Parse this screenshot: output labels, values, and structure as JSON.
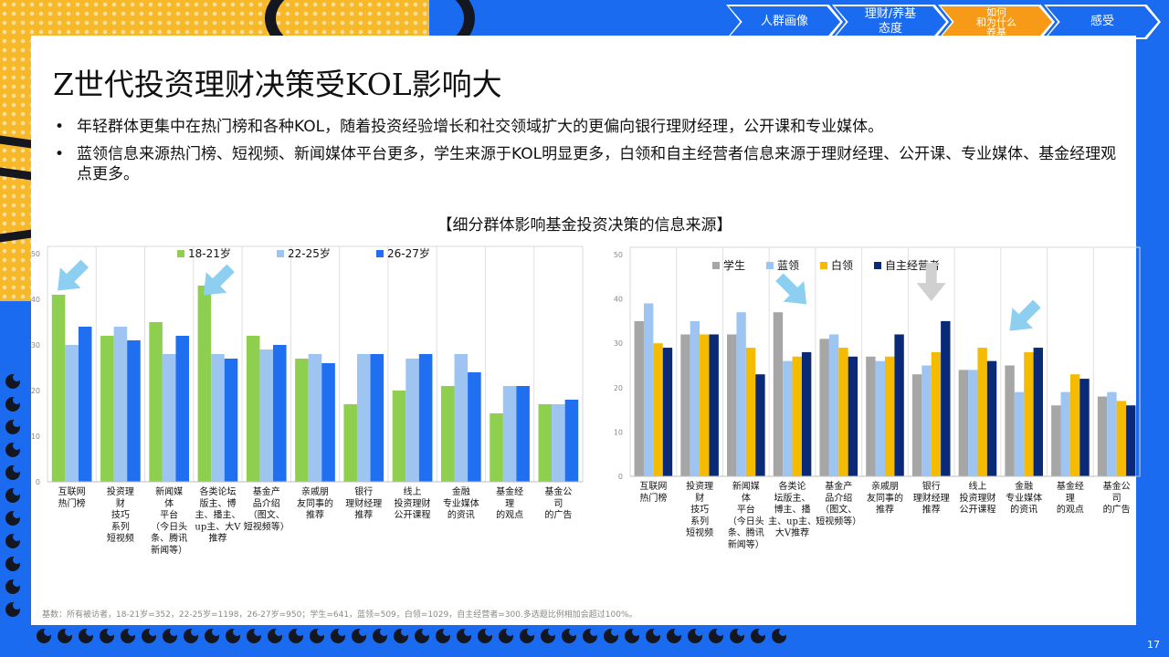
{
  "title": "Z世代投资理财决策受KOL影响大",
  "bullets": [
    "年轻群体更集中在热门榜和各种KOL，随着投资经验增长和社交领域扩大的更偏向银行理财经理，公开课和专业媒体。",
    "蓝领信息来源热门榜、短视频、新闻媒体平台更多，学生来源于KOL明显更多，白领和自主经营者信息来源于理财经理、公开课、专业媒体、基金经理观点更多。"
  ],
  "chart_heading": "【细分群体影响基金投资决策的信息来源】",
  "nav": [
    {
      "label": "人群画像",
      "active": false
    },
    {
      "label": "理财/养基\n态度",
      "active": false
    },
    {
      "label": "如何\n和为什么\n养基",
      "active": true
    },
    {
      "label": "感受",
      "active": false
    }
  ],
  "footnote": "基数：所有被访者，18-21岁=352，22-25岁=1198，26-27岁=950；学生=641，蓝领=509，白领=1029，自主经营者=300.多选题比例相加会超过100%。",
  "page_number": "17",
  "colors": {
    "green": "#8fcf4f",
    "lightblue": "#9ec5f2",
    "blue": "#1f6ff0",
    "gray": "#a6a6a6",
    "yellow": "#f5bb00",
    "navy": "#0a2a78",
    "arrow": "#8ccff0",
    "arrow_gray": "#d0d0d0",
    "nav_blue": "#1a6bf0",
    "nav_orange": "#f79a17"
  },
  "chart_data": [
    {
      "type": "bar",
      "ylim": [
        0,
        50
      ],
      "yticks": [
        "0",
        "10",
        "20",
        "30",
        "40",
        "50"
      ],
      "legend_position": "top",
      "grid": "vertical",
      "categories": [
        "互联网\n热门榜",
        "投资理\n财\n技巧\n系列\n短视频",
        "新闻媒\n体\n平台\n（今日头\n条、腾讯\n新闻等）",
        "各类论坛\n版主、博\n主、播主、\nup主、大V\n推荐",
        "基金产\n品介绍\n（图文、\n短视频等）",
        "亲戚朋\n友同事的\n推荐",
        "银行\n理财经理\n推荐",
        "线上\n投资理财\n公开课程",
        "金融\n专业媒体\n的资讯",
        "基金经\n理\n的观点",
        "基金公\n司\n的广告"
      ],
      "series": [
        {
          "name": "18-21岁",
          "color": "green",
          "values": [
            41,
            32,
            35,
            43,
            32,
            27,
            17,
            20,
            21,
            15,
            17
          ]
        },
        {
          "name": "22-25岁",
          "color": "lightblue",
          "values": [
            30,
            34,
            28,
            28,
            29,
            28,
            28,
            27,
            28,
            21,
            17
          ]
        },
        {
          "name": "26-27岁",
          "color": "blue",
          "values": [
            34,
            31,
            32,
            27,
            30,
            26,
            28,
            28,
            24,
            21,
            18
          ]
        }
      ],
      "arrows": [
        {
          "category": 0,
          "value": 45,
          "direction": "down-left",
          "color": "arrow"
        },
        {
          "category": 3,
          "value": 44,
          "direction": "down-left",
          "color": "arrow"
        }
      ]
    },
    {
      "type": "bar",
      "ylim": [
        0,
        50
      ],
      "yticks": [
        "0",
        "10",
        "20",
        "30",
        "40",
        "50"
      ],
      "legend_position": "top",
      "grid": "vertical",
      "categories": [
        "互联网\n热门榜",
        "投资理\n财\n技巧\n系列\n短视频",
        "新闻媒\n体\n平台\n（今日头\n条、腾讯\n新闻等）",
        "各类论\n坛版主、\n博主、播\n主、up主、\n大V推荐",
        "基金产\n品介绍\n（图文、\n短视频等）",
        "亲戚朋\n友同事的\n推荐",
        "银行\n理财经理\n推荐",
        "线上\n投资理财\n公开课程",
        "金融\n专业媒体\n的资讯",
        "基金经\n理\n的观点",
        "基金公\n司\n的广告"
      ],
      "series": [
        {
          "name": "学生",
          "color": "gray",
          "values": [
            35,
            32,
            32,
            37,
            31,
            27,
            23,
            24,
            25,
            16,
            18
          ]
        },
        {
          "name": "蓝领",
          "color": "lightblue",
          "values": [
            39,
            35,
            37,
            26,
            32,
            26,
            25,
            24,
            19,
            19,
            19
          ]
        },
        {
          "name": "白领",
          "color": "yellow",
          "values": [
            30,
            32,
            29,
            27,
            29,
            27,
            28,
            29,
            28,
            23,
            17
          ]
        },
        {
          "name": "自主经营者",
          "color": "navy",
          "values": [
            29,
            32,
            23,
            28,
            27,
            32,
            35,
            26,
            29,
            22,
            16
          ]
        }
      ],
      "arrows": [
        {
          "category": 3,
          "value": 42,
          "direction": "down-right",
          "color": "arrow"
        },
        {
          "category": 6,
          "value": 44,
          "direction": "down",
          "color": "arrow_gray"
        },
        {
          "category": 8,
          "value": 36,
          "direction": "down-left",
          "color": "arrow"
        }
      ]
    }
  ]
}
